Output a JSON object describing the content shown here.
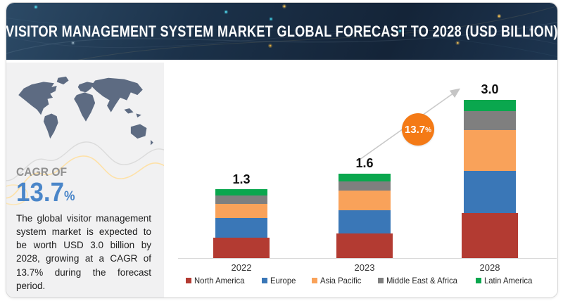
{
  "header": {
    "title": "VISITOR MANAGEMENT SYSTEM MARKET GLOBAL FORECAST TO 2028 (USD BILLION)"
  },
  "sidebar": {
    "map_icon": "world-map",
    "cagr_label": "CAGR OF",
    "cagr_value": "13.7",
    "cagr_unit": "%",
    "description": "The global visitor management system market is expected to be worth USD 3.0 billion by 2028, growing at a CAGR of 13.7% during the forecast period."
  },
  "chart_data": {
    "type": "bar",
    "stacked": true,
    "title": "VISITOR MANAGEMENT SYSTEM MARKET GLOBAL FORECAST TO 2028 (USD BILLION)",
    "categories": [
      "2022",
      "2023",
      "2028"
    ],
    "series": [
      {
        "name": "North America",
        "color": "#b33b32",
        "values": [
          0.39,
          0.47,
          0.85
        ]
      },
      {
        "name": "Europe",
        "color": "#3a77b7",
        "values": [
          0.37,
          0.44,
          0.8
        ]
      },
      {
        "name": "Asia Pacific",
        "color": "#f9a25a",
        "values": [
          0.27,
          0.37,
          0.78
        ]
      },
      {
        "name": "Middle East & Africa",
        "color": "#7f7f7f",
        "values": [
          0.15,
          0.17,
          0.35
        ]
      },
      {
        "name": "Latin America",
        "color": "#0aa74e",
        "values": [
          0.12,
          0.15,
          0.22
        ]
      }
    ],
    "totals": [
      "1.3",
      "1.6",
      "3.0"
    ],
    "unit": "USD Billion",
    "ylim": [
      0,
      3.2
    ],
    "grid": false,
    "legend_position": "bottom",
    "annotation": {
      "growth_label": "13.7",
      "growth_unit": "%",
      "badge_color": "#f47a16"
    }
  }
}
